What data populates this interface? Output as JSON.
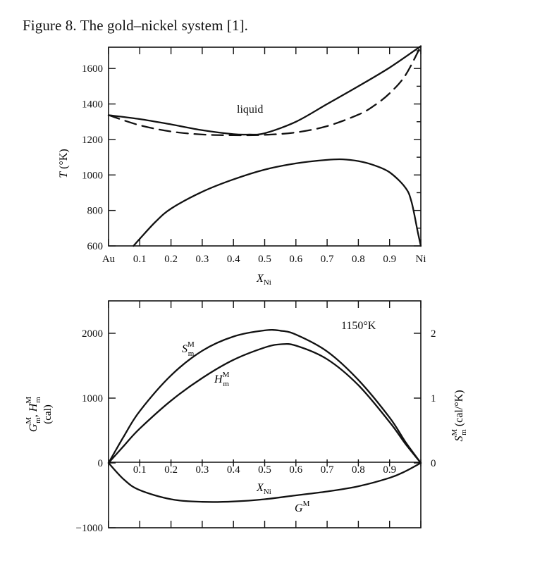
{
  "caption": "Figure 8.  The gold–nickel system [1].",
  "chart_data": [
    {
      "type": "line",
      "xlabel": "X_Ni",
      "ylabel": "T (°K)",
      "xlim": [
        0,
        1
      ],
      "ylim": [
        600,
        1720
      ],
      "x_ticks": [
        {
          "v": 0,
          "label": "Au"
        },
        {
          "v": 0.1,
          "label": "0.1"
        },
        {
          "v": 0.2,
          "label": "0.2"
        },
        {
          "v": 0.3,
          "label": "0.3"
        },
        {
          "v": 0.4,
          "label": "0.4"
        },
        {
          "v": 0.5,
          "label": "0.5"
        },
        {
          "v": 0.6,
          "label": "0.6"
        },
        {
          "v": 0.7,
          "label": "0.7"
        },
        {
          "v": 0.8,
          "label": "0.8"
        },
        {
          "v": 0.9,
          "label": "0.9"
        },
        {
          "v": 1,
          "label": "Ni"
        }
      ],
      "y_ticks": [
        600,
        800,
        1000,
        1200,
        1400,
        1600
      ],
      "annotations": [
        {
          "text": "liquid",
          "x": 0.45,
          "y": 1440
        }
      ],
      "series": [
        {
          "style": "solid",
          "x": [
            0,
            0.1,
            0.2,
            0.3,
            0.4,
            0.45,
            0.5,
            0.6,
            0.7,
            0.8,
            0.9,
            1.0
          ],
          "y": [
            1337,
            1315,
            1285,
            1252,
            1230,
            1228,
            1235,
            1300,
            1400,
            1500,
            1605,
            1726
          ]
        },
        {
          "style": "dashed",
          "x": [
            0,
            0.1,
            0.2,
            0.3,
            0.4,
            0.5,
            0.6,
            0.7,
            0.8,
            0.85,
            0.9,
            0.95,
            1.0
          ],
          "y": [
            1337,
            1280,
            1245,
            1228,
            1224,
            1226,
            1240,
            1275,
            1340,
            1390,
            1460,
            1560,
            1726
          ]
        },
        {
          "style": "solid",
          "x": [
            0.08,
            0.1,
            0.15,
            0.2,
            0.3,
            0.4,
            0.5,
            0.6,
            0.7,
            0.75,
            0.8,
            0.85,
            0.9,
            0.95,
            0.97,
            0.99,
            1.0
          ],
          "y": [
            600,
            640,
            735,
            810,
            905,
            975,
            1030,
            1065,
            1085,
            1088,
            1078,
            1055,
            1015,
            930,
            850,
            680,
            600
          ]
        }
      ]
    },
    {
      "type": "line",
      "xlabel": "X_Ni",
      "ylabel": "G_m^M, H_m^M (cal)",
      "ylabel_right": "S_m^M (cal/°K)",
      "title": "1150°K",
      "xlim": [
        0,
        1
      ],
      "ylim": [
        -1000,
        2500
      ],
      "x_ticks": [
        {
          "v": 0.1,
          "label": "0.1"
        },
        {
          "v": 0.2,
          "label": "0.2"
        },
        {
          "v": 0.3,
          "label": "0.3"
        },
        {
          "v": 0.4,
          "label": "0.4"
        },
        {
          "v": 0.5,
          "label": "0.5"
        },
        {
          "v": 0.6,
          "label": "0.6"
        },
        {
          "v": 0.7,
          "label": "0.7"
        },
        {
          "v": 0.8,
          "label": "0.8"
        },
        {
          "v": 0.9,
          "label": "0.9"
        }
      ],
      "y_ticks": [
        -1000,
        0,
        1000,
        2000
      ],
      "y_right_ticks": [
        0,
        1,
        2
      ],
      "series": [
        {
          "name": "S^M_m",
          "style": "solid",
          "x": [
            0,
            0.05,
            0.1,
            0.2,
            0.3,
            0.4,
            0.5,
            0.55,
            0.6,
            0.7,
            0.8,
            0.9,
            0.95,
            1.0
          ],
          "y": [
            0,
            420,
            800,
            1350,
            1730,
            1950,
            2045,
            2040,
            1980,
            1720,
            1280,
            700,
            330,
            0
          ]
        },
        {
          "name": "H^M_m",
          "style": "solid",
          "x": [
            0,
            0.05,
            0.1,
            0.2,
            0.3,
            0.4,
            0.5,
            0.55,
            0.6,
            0.7,
            0.8,
            0.9,
            0.95,
            1.0
          ],
          "y": [
            0,
            270,
            530,
            960,
            1310,
            1590,
            1780,
            1830,
            1810,
            1600,
            1200,
            630,
            300,
            0
          ]
        },
        {
          "name": "G^M",
          "style": "solid",
          "x": [
            0,
            0.05,
            0.1,
            0.2,
            0.3,
            0.4,
            0.5,
            0.6,
            0.7,
            0.8,
            0.9,
            0.95,
            1.0
          ],
          "y": [
            0,
            -260,
            -420,
            -560,
            -600,
            -595,
            -560,
            -500,
            -440,
            -360,
            -230,
            -130,
            0
          ]
        }
      ]
    }
  ],
  "labels": {
    "top_annotation": "liquid",
    "bottom_title": "1150°K",
    "series_S": "S",
    "series_H": "H",
    "series_G": "G",
    "sup_M": "M",
    "sub_m": "m",
    "sub_Ni": "Ni",
    "x_var": "X",
    "T_var": "T",
    "T_unit": " (°K)",
    "left_unit": "(cal)",
    "right_unit": " (cal/°K)",
    "comma": ", "
  }
}
